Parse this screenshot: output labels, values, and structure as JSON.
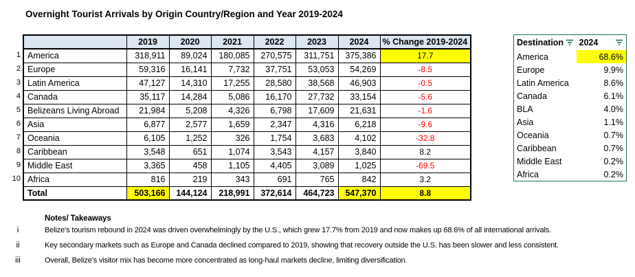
{
  "title": "Overnight Tourist Arrivals by Origin Country/Region and Year 2019-2024",
  "main_table": {
    "row_numbers": [
      "1",
      "2",
      "3",
      "4",
      "5",
      "6",
      "7",
      "8",
      "9",
      "10"
    ],
    "columns": [
      "",
      "2019",
      "2020",
      "2021",
      "2022",
      "2023",
      "2024",
      "% Change 2019-2024"
    ],
    "rows": [
      {
        "label": "America",
        "values": [
          "318,911",
          "89,024",
          "180,085",
          "270,575",
          "311,751",
          "375,386"
        ],
        "change": "17.7",
        "change_highlight": true
      },
      {
        "label": "Europe",
        "values": [
          "59,316",
          "16,141",
          "7,732",
          "37,751",
          "53,053",
          "54,269"
        ],
        "change": "-8.5"
      },
      {
        "label": "Latin America",
        "values": [
          "47,127",
          "14,310",
          "17,255",
          "28,580",
          "38,568",
          "46,903"
        ],
        "change": "-0.5"
      },
      {
        "label": "Canada",
        "values": [
          "35,117",
          "14,284",
          "5,086",
          "16,170",
          "27,732",
          "33,154"
        ],
        "change": "-5.6"
      },
      {
        "label": "Belizeans Living Abroad",
        "values": [
          "21,984",
          "5,208",
          "4,326",
          "6,798",
          "17,609",
          "21,631"
        ],
        "change": "-1.6"
      },
      {
        "label": "Asia",
        "values": [
          "6,877",
          "2,577",
          "1,659",
          "2,347",
          "4,316",
          "6,218"
        ],
        "change": "-9.6"
      },
      {
        "label": "Oceania",
        "values": [
          "6,105",
          "1,252",
          "326",
          "1,754",
          "3,683",
          "4,102"
        ],
        "change": "-32.8"
      },
      {
        "label": "Caribbean",
        "values": [
          "3,548",
          "651",
          "1,074",
          "3,543",
          "4,157",
          "3,840"
        ],
        "change": "8.2"
      },
      {
        "label": "Middle East",
        "values": [
          "3,365",
          "458",
          "1,105",
          "4,405",
          "3,089",
          "1,025"
        ],
        "change": "-69.5"
      },
      {
        "label": "Africa",
        "values": [
          "816",
          "219",
          "343",
          "691",
          "765",
          "842"
        ],
        "change": "3.2"
      }
    ],
    "total": {
      "label": "Total",
      "values": [
        "503,166",
        "144,124",
        "218,991",
        "372,614",
        "464,723",
        "547,370"
      ],
      "change": "8.8",
      "value_highlights": [
        0,
        5
      ],
      "change_highlight": true
    }
  },
  "side_table": {
    "headers": [
      {
        "label": "Destination",
        "filter_icon": true
      },
      {
        "label": "2024",
        "filter_icon": true
      }
    ],
    "rows": [
      {
        "label": "America",
        "value": "68.6%",
        "highlight": true
      },
      {
        "label": "Europe",
        "value": "9.9%"
      },
      {
        "label": "Latin America",
        "value": "8.6%"
      },
      {
        "label": "Canada",
        "value": "6.1%"
      },
      {
        "label": "BLA",
        "value": "4.0%"
      },
      {
        "label": "Asia",
        "value": "1.1%"
      },
      {
        "label": "Oceania",
        "value": "0.7%"
      },
      {
        "label": "Caribbean",
        "value": "0.7%"
      },
      {
        "label": "Middle East",
        "value": "0.2%"
      },
      {
        "label": "Africa",
        "value": "0.2%"
      }
    ]
  },
  "notes": {
    "heading": "Notes/ Takeaways",
    "items": [
      {
        "marker": "i",
        "text": "Belize’s tourism rebound in 2024 was driven overwhelmingly by the U.S., which grew 17.7% from 2019 and now makes up 68.6% of all international arrivals."
      },
      {
        "marker": "ii",
        "text": "Key secondary markets such as Europe and Canada declined compared to 2019, showing that recovery outside the U.S. has been slower and less consistent."
      },
      {
        "marker": "iii",
        "text": "Overall, Belize’s visitor mix has become more concentrated as long-haul markets decline, limiting diversification."
      }
    ]
  },
  "colors": {
    "highlight_yellow": "#FFFF00",
    "negative_red": "#FF0000",
    "header_bg_blue": "#DCE6F1",
    "side_table_border_green": "#217346",
    "text": "#000000"
  }
}
